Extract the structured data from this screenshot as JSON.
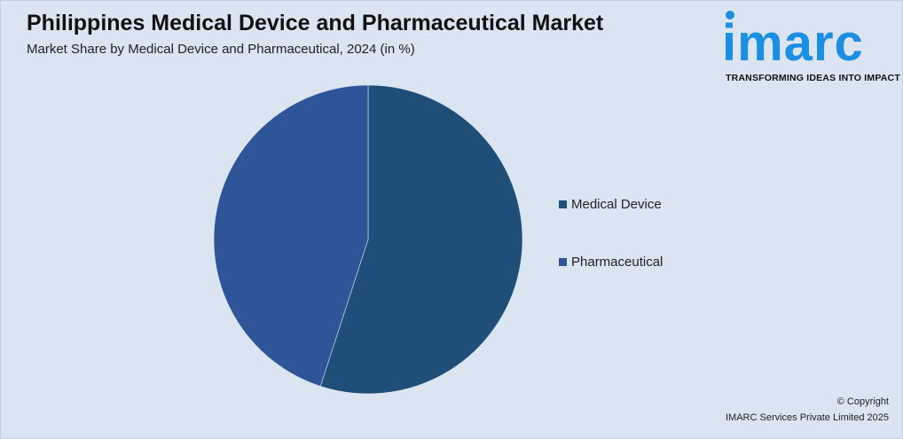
{
  "header": {
    "title": "Philippines Medical Device and Pharmaceutical Market",
    "subtitle": "Market Share by Medical Device and Pharmaceutical, 2024 (in %)"
  },
  "logo": {
    "word": "imarc",
    "tagline": "TRANSFORMING IDEAS INTO IMPACT",
    "color": "#1a8fe3"
  },
  "chart_data": {
    "type": "pie",
    "categories": [
      "Medical Device",
      "Pharmaceutical"
    ],
    "values": [
      55,
      45
    ],
    "colors": [
      "#1f4e79",
      "#2e5597"
    ],
    "start_angle_deg": 0,
    "direction": "clockwise",
    "legend": "right"
  },
  "footer": {
    "copyright": "© Copyright",
    "company": "IMARC Services Private Limited 2025"
  }
}
